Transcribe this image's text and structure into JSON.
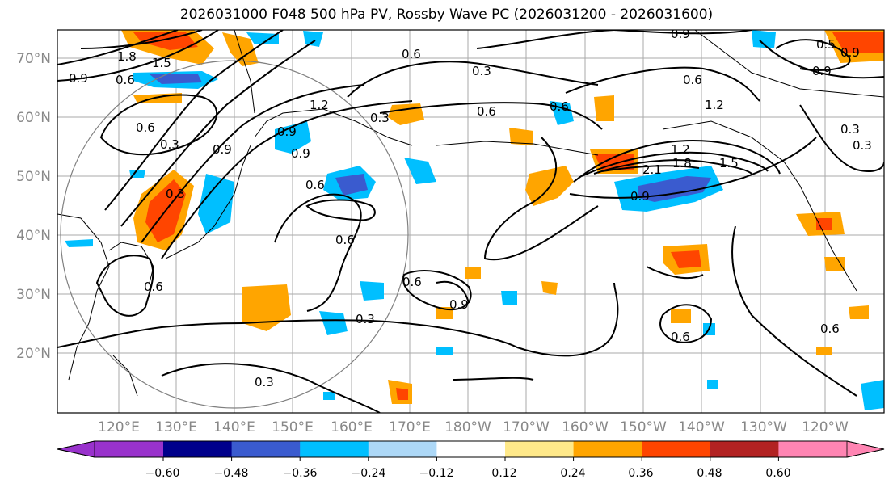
{
  "title": "2026031000 F048 500 hPa PV, Rossby Wave PC (2026031200 - 2026031600)",
  "map": {
    "lat_labels": [
      "70°N",
      "60°N",
      "50°N",
      "40°N",
      "30°N",
      "20°N"
    ],
    "lon_labels": [
      "120°E",
      "130°E",
      "140°E",
      "150°E",
      "160°E",
      "170°E",
      "180°W",
      "170°W",
      "160°W",
      "150°W",
      "140°W",
      "130°W",
      "120°W"
    ],
    "contour_labels": [
      "1.8",
      "1.5",
      "0.9",
      "0.6",
      "0.6",
      "0.6",
      "0.3",
      "0.6",
      "0.3",
      "1.2",
      "0.9",
      "0.6",
      "0.6",
      "0.3",
      "0.6",
      "0.9",
      "0.9",
      "0.6",
      "1.2",
      "0.3",
      "1.2",
      "2.1",
      "1.8",
      "1.5",
      "0.9",
      "0.6",
      "0.9",
      "0.3",
      "0.9",
      "0.6",
      "0.6",
      "0.9",
      "0.6",
      "0.3",
      "0.3",
      "0.3",
      "0.9",
      "0.5"
    ]
  },
  "colorbar": {
    "tick_labels": [
      "−0.60",
      "−0.48",
      "−0.36",
      "−0.24",
      "−0.12",
      "0.12",
      "0.24",
      "0.36",
      "0.48",
      "0.60"
    ],
    "colors": [
      "#9932cc",
      "#00008b",
      "#3a5bcf",
      "#00bfff",
      "#add8f7",
      "#ffffff",
      "#ffe98a",
      "#ffa500",
      "#ff4500",
      "#b22222",
      "#ff85b3"
    ],
    "extend": "both"
  }
}
